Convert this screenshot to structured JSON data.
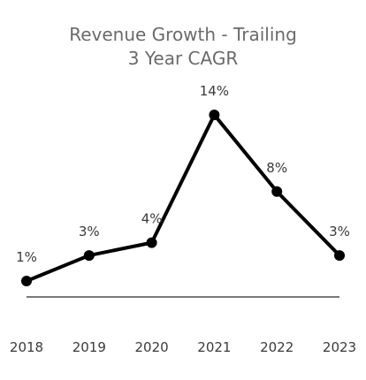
{
  "chart_data": {
    "type": "line",
    "title": "Revenue Growth - Trailing",
    "subtitle": "3 Year CAGR",
    "categories": [
      "2018",
      "2019",
      "2020",
      "2021",
      "2022",
      "2023"
    ],
    "values": [
      1,
      3,
      4,
      14,
      8,
      3
    ],
    "data_labels": [
      "1%",
      "3%",
      "4%",
      "14%",
      "8%",
      "3%"
    ],
    "xlabel": "",
    "ylabel": "",
    "ylim": [
      -1,
      14
    ],
    "grid": false,
    "legend": "none",
    "colors": {
      "line": "#000000",
      "axis": "#7a7a7a",
      "title": "#6a6a6a",
      "label": "#3a3a3a"
    }
  }
}
